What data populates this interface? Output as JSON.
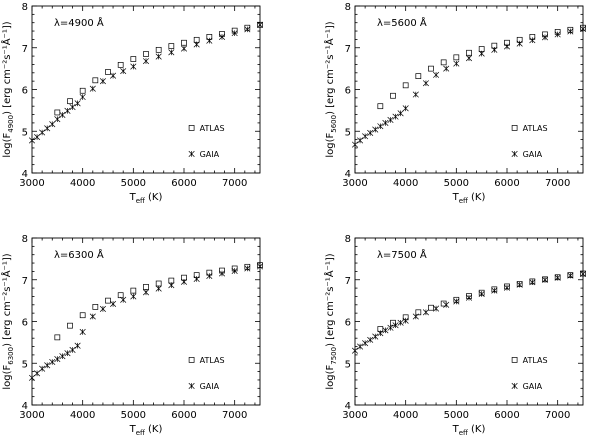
{
  "chart_data": [
    {
      "type": "scatter",
      "annotation": "λ=4900 Å",
      "ylabel_main": "log(F",
      "ylabel_sub": "4900",
      "ylabel_rest": ") [erg cm⁻²s⁻¹Å⁻¹])",
      "xlabel_main": "T",
      "xlabel_sub": "eff",
      "xlabel_rest": " (K)",
      "xlim": [
        3000,
        7500
      ],
      "ylim": [
        4,
        8
      ],
      "x_ticks": [
        3000,
        4000,
        5000,
        6000,
        7000
      ],
      "y_ticks": [
        4,
        5,
        6,
        7,
        8
      ],
      "legend": [
        {
          "symbol": "square",
          "label": "ATLAS"
        },
        {
          "symbol": "asterisk",
          "label": "GAIA"
        }
      ],
      "series": [
        {
          "name": "ATLAS",
          "symbol": "square",
          "x": [
            3500,
            3750,
            4000,
            4250,
            4500,
            4750,
            5000,
            5250,
            5500,
            5750,
            6000,
            6250,
            6500,
            6750,
            7000,
            7250,
            7500
          ],
          "y": [
            5.45,
            5.72,
            5.97,
            6.22,
            6.42,
            6.59,
            6.73,
            6.85,
            6.95,
            7.04,
            7.12,
            7.19,
            7.26,
            7.33,
            7.41,
            7.48,
            7.55
          ]
        },
        {
          "name": "GAIA",
          "symbol": "asterisk",
          "x": [
            3000,
            3100,
            3200,
            3300,
            3400,
            3500,
            3600,
            3700,
            3800,
            3900,
            4000,
            4200,
            4400,
            4600,
            4800,
            5000,
            5250,
            5500,
            5750,
            6000,
            6250,
            6500,
            6750,
            7000,
            7250,
            7500
          ],
          "y": [
            4.78,
            4.86,
            4.97,
            5.07,
            5.17,
            5.29,
            5.39,
            5.49,
            5.58,
            5.67,
            5.82,
            6.02,
            6.2,
            6.33,
            6.44,
            6.55,
            6.68,
            6.79,
            6.89,
            6.98,
            7.08,
            7.17,
            7.26,
            7.35,
            7.44,
            7.55
          ]
        }
      ]
    },
    {
      "type": "scatter",
      "annotation": "λ=5600 Å",
      "ylabel_main": "log(F",
      "ylabel_sub": "5600",
      "ylabel_rest": ") [erg cm⁻²s⁻¹Å⁻¹])",
      "xlabel_main": "T",
      "xlabel_sub": "eff",
      "xlabel_rest": " (K)",
      "xlim": [
        3000,
        7500
      ],
      "ylim": [
        4,
        8
      ],
      "x_ticks": [
        3000,
        4000,
        5000,
        6000,
        7000
      ],
      "y_ticks": [
        4,
        5,
        6,
        7,
        8
      ],
      "legend": [
        {
          "symbol": "square",
          "label": "ATLAS"
        },
        {
          "symbol": "asterisk",
          "label": "GAIA"
        }
      ],
      "series": [
        {
          "name": "ATLAS",
          "symbol": "square",
          "x": [
            3500,
            3750,
            4000,
            4250,
            4500,
            4750,
            5000,
            5250,
            5500,
            5750,
            6000,
            6250,
            6500,
            6750,
            7000,
            7250,
            7500
          ],
          "y": [
            5.6,
            5.85,
            6.1,
            6.32,
            6.5,
            6.65,
            6.77,
            6.88,
            6.97,
            7.05,
            7.12,
            7.19,
            7.26,
            7.32,
            7.38,
            7.43,
            7.48
          ]
        },
        {
          "name": "GAIA",
          "symbol": "asterisk",
          "x": [
            3000,
            3100,
            3200,
            3300,
            3400,
            3500,
            3600,
            3700,
            3800,
            3900,
            4000,
            4200,
            4400,
            4600,
            4800,
            5000,
            5250,
            5500,
            5750,
            6000,
            6250,
            6500,
            6750,
            7000,
            7250,
            7500
          ],
          "y": [
            4.68,
            4.78,
            4.88,
            4.96,
            5.04,
            5.12,
            5.2,
            5.27,
            5.35,
            5.43,
            5.55,
            5.88,
            6.15,
            6.35,
            6.5,
            6.62,
            6.75,
            6.86,
            6.95,
            7.03,
            7.1,
            7.18,
            7.25,
            7.32,
            7.39,
            7.45
          ]
        }
      ]
    },
    {
      "type": "scatter",
      "annotation": "λ=6300 Å",
      "ylabel_main": "log(F",
      "ylabel_sub": "6300",
      "ylabel_rest": ") [erg cm⁻²s⁻¹Å⁻¹])",
      "xlabel_main": "T",
      "xlabel_sub": "eff",
      "xlabel_rest": " (K)",
      "xlim": [
        3000,
        7500
      ],
      "ylim": [
        4,
        8
      ],
      "x_ticks": [
        3000,
        4000,
        5000,
        6000,
        7000
      ],
      "y_ticks": [
        4,
        5,
        6,
        7,
        8
      ],
      "legend": [
        {
          "symbol": "square",
          "label": "ATLAS"
        },
        {
          "symbol": "asterisk",
          "label": "GAIA"
        }
      ],
      "series": [
        {
          "name": "ATLAS",
          "symbol": "square",
          "x": [
            3500,
            3750,
            4000,
            4250,
            4500,
            4750,
            5000,
            5250,
            5500,
            5750,
            6000,
            6250,
            6500,
            6750,
            7000,
            7250,
            7500
          ],
          "y": [
            5.62,
            5.9,
            6.15,
            6.35,
            6.5,
            6.63,
            6.74,
            6.83,
            6.91,
            6.98,
            7.05,
            7.11,
            7.17,
            7.22,
            7.27,
            7.31,
            7.35
          ]
        },
        {
          "name": "GAIA",
          "symbol": "asterisk",
          "x": [
            3000,
            3100,
            3200,
            3300,
            3400,
            3500,
            3600,
            3700,
            3800,
            3900,
            4000,
            4200,
            4400,
            4600,
            4800,
            5000,
            5250,
            5500,
            5750,
            6000,
            6250,
            6500,
            6750,
            7000,
            7250,
            7500
          ],
          "y": [
            4.65,
            4.76,
            4.87,
            4.95,
            5.03,
            5.1,
            5.17,
            5.24,
            5.32,
            5.42,
            5.75,
            6.12,
            6.3,
            6.42,
            6.52,
            6.6,
            6.7,
            6.79,
            6.87,
            6.95,
            7.02,
            7.09,
            7.15,
            7.21,
            7.27,
            7.32
          ]
        }
      ]
    },
    {
      "type": "scatter",
      "annotation": "λ=7500 Å",
      "ylabel_main": "log(F",
      "ylabel_sub": "7500",
      "ylabel_rest": ") [erg cm⁻²s⁻¹Å⁻¹])",
      "xlabel_main": "T",
      "xlabel_sub": "eff",
      "xlabel_rest": " (K)",
      "xlim": [
        3000,
        7500
      ],
      "ylim": [
        4,
        8
      ],
      "x_ticks": [
        3000,
        4000,
        5000,
        6000,
        7000
      ],
      "y_ticks": [
        4,
        5,
        6,
        7,
        8
      ],
      "legend": [
        {
          "symbol": "square",
          "label": "ATLAS"
        },
        {
          "symbol": "asterisk",
          "label": "GAIA"
        }
      ],
      "series": [
        {
          "name": "ATLAS",
          "symbol": "square",
          "x": [
            3500,
            3750,
            4000,
            4250,
            4500,
            4750,
            5000,
            5250,
            5500,
            5750,
            6000,
            6250,
            6500,
            6750,
            7000,
            7250,
            7500
          ],
          "y": [
            5.82,
            5.97,
            6.1,
            6.22,
            6.33,
            6.43,
            6.52,
            6.61,
            6.69,
            6.77,
            6.84,
            6.9,
            6.96,
            7.01,
            7.06,
            7.11,
            7.15
          ]
        },
        {
          "name": "GAIA",
          "symbol": "asterisk",
          "x": [
            3000,
            3100,
            3200,
            3300,
            3400,
            3500,
            3600,
            3700,
            3800,
            3900,
            4000,
            4200,
            4400,
            4600,
            4800,
            5000,
            5250,
            5500,
            5750,
            6000,
            6250,
            6500,
            6750,
            7000,
            7250,
            7500
          ],
          "y": [
            5.3,
            5.4,
            5.48,
            5.56,
            5.64,
            5.72,
            5.79,
            5.85,
            5.91,
            5.97,
            6.02,
            6.12,
            6.22,
            6.31,
            6.4,
            6.48,
            6.57,
            6.66,
            6.74,
            6.81,
            6.88,
            6.94,
            7.0,
            7.05,
            7.1,
            7.14
          ]
        }
      ]
    }
  ]
}
